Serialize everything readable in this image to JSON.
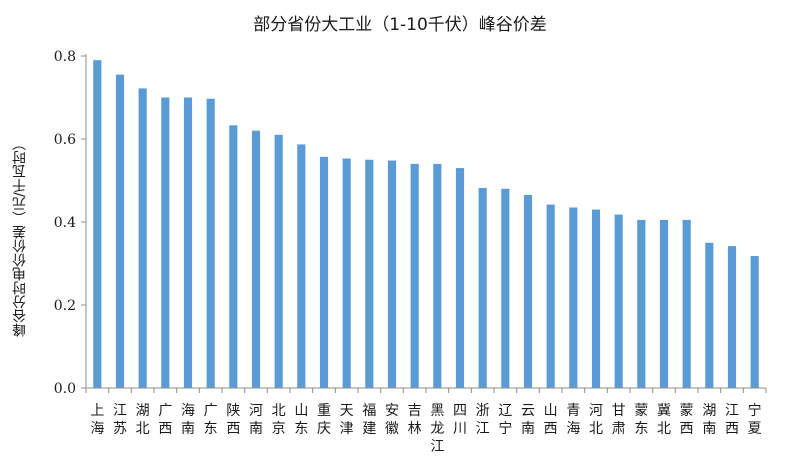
{
  "chart_data": {
    "type": "bar",
    "title": "部分省份大工业（1-10千伏）峰谷价差",
    "xlabel": "",
    "ylabel": "峰谷分时电价价差（元/千瓦时）",
    "ylim": [
      0,
      0.8
    ],
    "yticks": [
      "0.0",
      "0.2",
      "0.4",
      "0.6",
      "0.8"
    ],
    "grid": false,
    "legend": "none",
    "bar_color": "#5b9bd5",
    "categories": [
      "上海",
      "江苏",
      "湖北",
      "广西",
      "海南",
      "广东",
      "陕西",
      "河南",
      "北京",
      "山东",
      "重庆",
      "天津",
      "福建",
      "安徽",
      "吉林",
      "黑龙江",
      "四川",
      "浙江",
      "辽宁",
      "云南",
      "山西",
      "青海",
      "河北",
      "甘肃",
      "蒙东",
      "冀北",
      "蒙西",
      "湖南",
      "江西",
      "宁夏"
    ],
    "values": [
      0.79,
      0.755,
      0.722,
      0.7,
      0.7,
      0.697,
      0.633,
      0.62,
      0.61,
      0.587,
      0.557,
      0.553,
      0.55,
      0.548,
      0.54,
      0.54,
      0.53,
      0.482,
      0.48,
      0.465,
      0.442,
      0.435,
      0.43,
      0.418,
      0.405,
      0.405,
      0.405,
      0.35,
      0.342,
      0.318
    ]
  }
}
